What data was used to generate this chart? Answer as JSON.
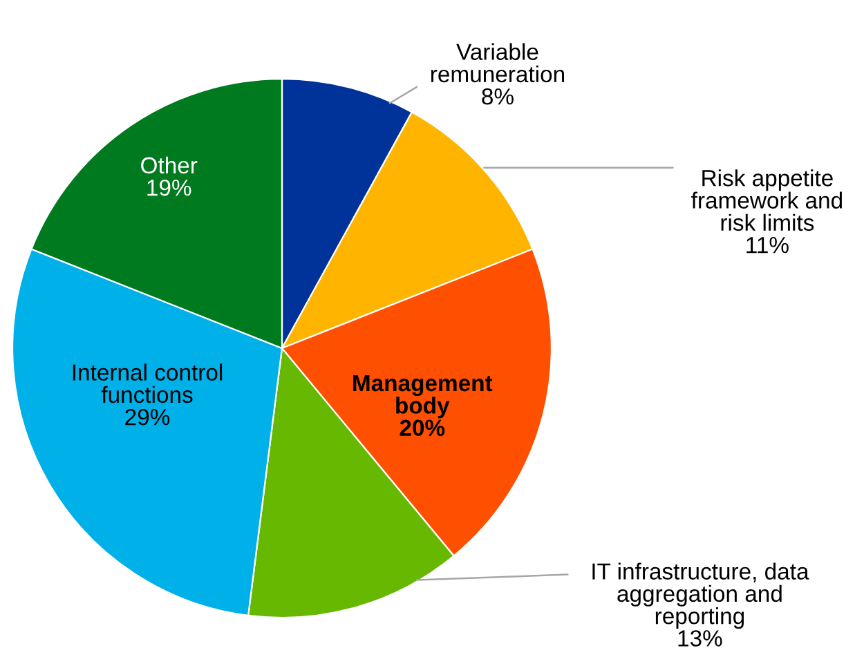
{
  "chart_data": {
    "type": "pie",
    "categories": [
      "Variable\nremuneration",
      "Risk appetite\nframework and\nrisk limits",
      "Management\nbody",
      "IT infrastructure, data\naggregation and\nreporting",
      "Internal control\nfunctions",
      "Other"
    ],
    "values": [
      8,
      11,
      20,
      13,
      29,
      19
    ],
    "value_labels": [
      "8%",
      "11%",
      "20%",
      "13%",
      "29%",
      "19%"
    ],
    "colors": [
      "#003399",
      "#ffb400",
      "#ff4f00",
      "#66b800",
      "#00b0e8",
      "#007a1e"
    ]
  }
}
